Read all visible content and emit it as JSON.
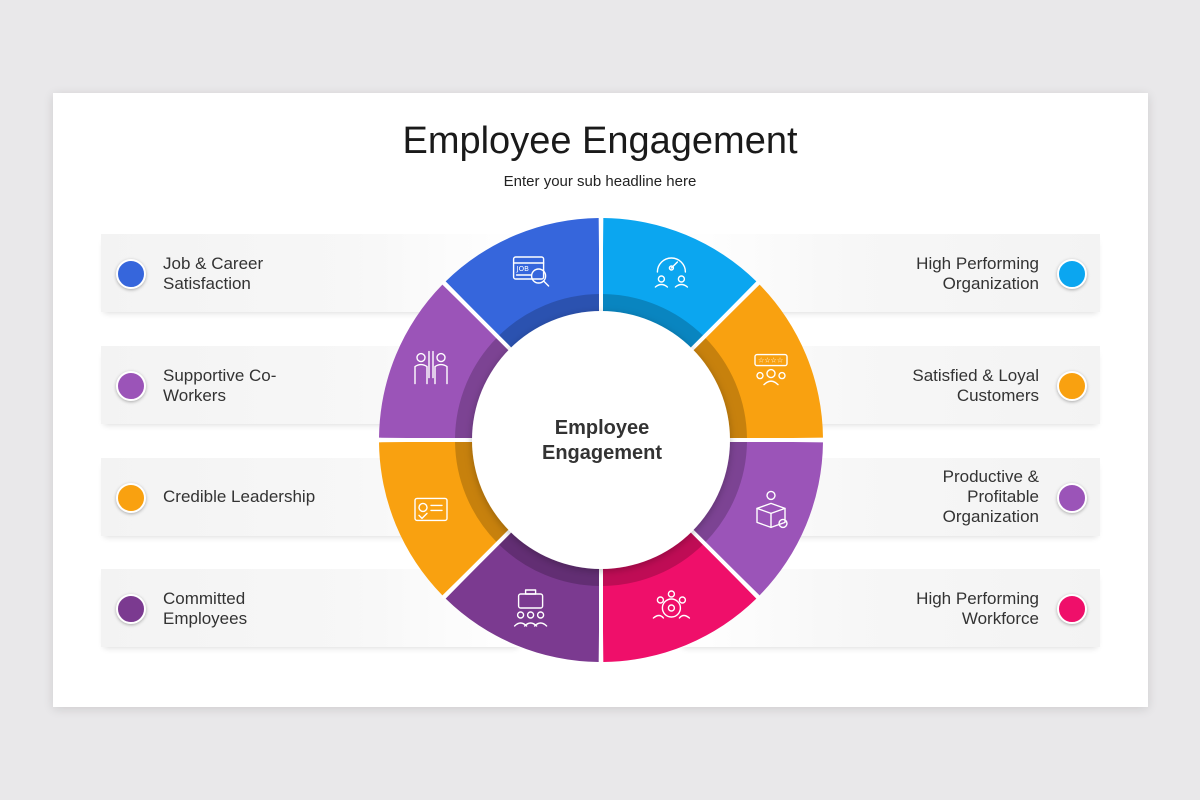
{
  "title": "Employee Engagement",
  "subtitle": "Enter your sub headline here",
  "center": "Employee\nEngagement",
  "left_items": [
    {
      "label": "Job & Career\nSatisfaction",
      "color": "#3666dc"
    },
    {
      "label": "Supportive Co-\nWorkers",
      "color": "#9b54b8"
    },
    {
      "label": "Credible Leadership",
      "color": "#f9a110"
    },
    {
      "label": "Committed\nEmployees",
      "color": "#7b3a90"
    }
  ],
  "right_items": [
    {
      "label": "High Performing\nOrganization",
      "color": "#0ba6f0"
    },
    {
      "label": "Satisfied & Loyal\nCustomers",
      "color": "#f9a110"
    },
    {
      "label": "Productive &\nProfitable\nOrganization",
      "color": "#9b54b8"
    },
    {
      "label": "High Performing\nWorkforce",
      "color": "#ef0f6a"
    }
  ],
  "segments": [
    {
      "color": "#0ba6f0",
      "icon": "speedometer-people-icon"
    },
    {
      "color": "#f9a110",
      "icon": "customer-rating-icon"
    },
    {
      "color": "#9b54b8",
      "icon": "product-box-idea-icon"
    },
    {
      "color": "#ef0f6a",
      "icon": "team-gear-icon"
    },
    {
      "color": "#7b3a90",
      "icon": "briefcase-team-icon"
    },
    {
      "color": "#f9a110",
      "icon": "id-card-check-icon"
    },
    {
      "color": "#9b54b8",
      "icon": "coworkers-icon"
    },
    {
      "color": "#3666dc",
      "icon": "job-search-icon"
    }
  ]
}
